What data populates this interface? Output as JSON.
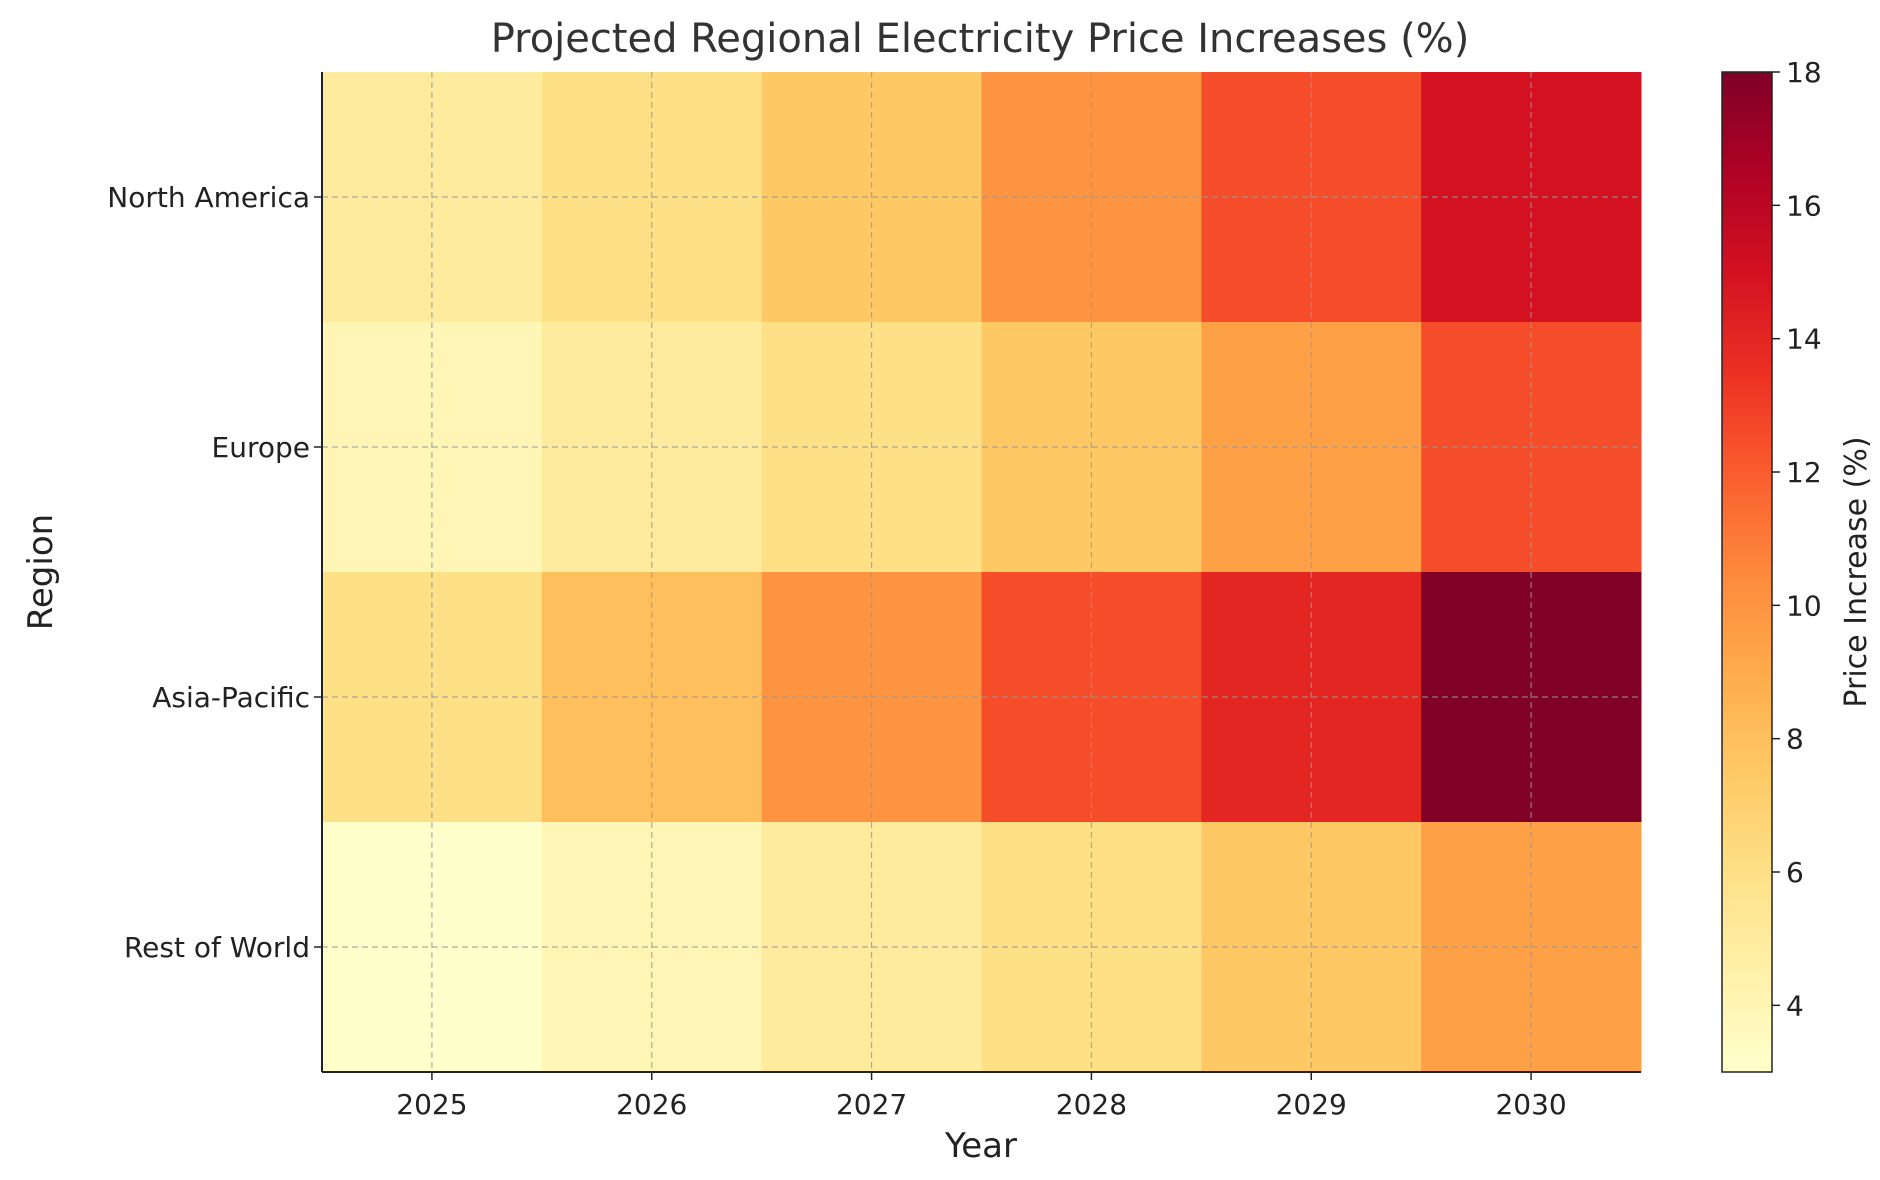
{
  "chart_data": {
    "type": "heatmap",
    "title": "Projected Regional Electricity Price Increases (%)",
    "xlabel": "Year",
    "ylabel": "Region",
    "x_categories": [
      "2025",
      "2026",
      "2027",
      "2028",
      "2029",
      "2030"
    ],
    "y_categories": [
      "North America",
      "Europe",
      "Asia-Pacific",
      "Rest of World"
    ],
    "values": [
      [
        5.0,
        6.0,
        7.5,
        10.0,
        12.5,
        15.0
      ],
      [
        4.0,
        5.0,
        6.0,
        7.5,
        9.5,
        12.5
      ],
      [
        6.0,
        8.0,
        10.0,
        12.5,
        14.0,
        18.0
      ],
      [
        3.0,
        4.0,
        5.0,
        6.0,
        7.5,
        9.5
      ]
    ],
    "colorbar": {
      "label": "Price Increase (%)",
      "vmin": 3,
      "vmax": 18,
      "ticks": [
        4,
        6,
        8,
        10,
        12,
        14,
        16,
        18
      ]
    },
    "colormap": [
      "#ffffcc",
      "#fff1a9",
      "#fee087",
      "#fec965",
      "#feab4b",
      "#fd893c",
      "#fa5c2e",
      "#ec3023",
      "#d31121",
      "#af0225",
      "#800026"
    ],
    "grid": true
  }
}
